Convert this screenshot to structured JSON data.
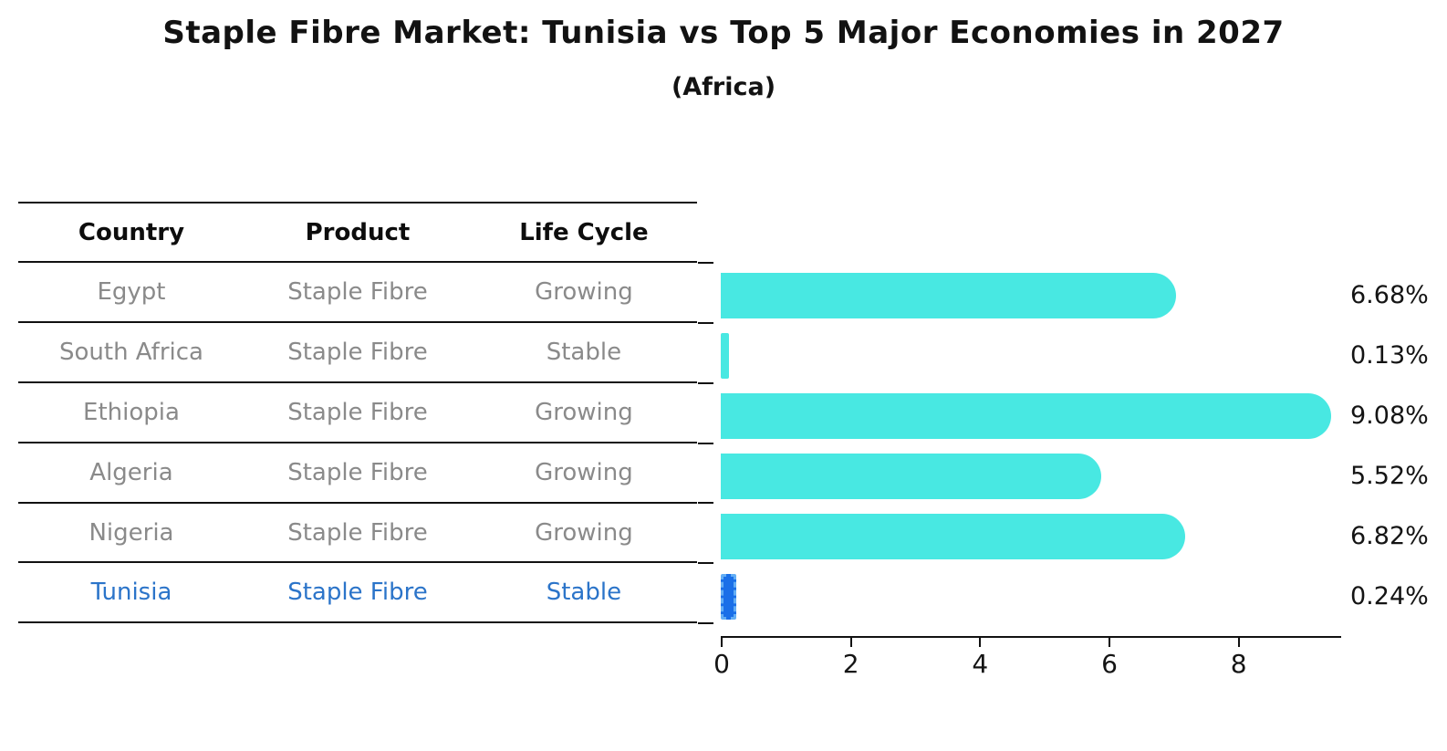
{
  "title": "Staple Fibre Market: Tunisia vs Top 5 Major Economies in 2027",
  "subtitle": "(Africa)",
  "table": {
    "columns": [
      "Country",
      "Product",
      "Life Cycle"
    ],
    "rows": [
      {
        "country": "Egypt",
        "product": "Staple Fibre",
        "life_cycle": "Growing",
        "highlight": false
      },
      {
        "country": "South Africa",
        "product": "Staple Fibre",
        "life_cycle": "Stable",
        "highlight": false
      },
      {
        "country": "Ethiopia",
        "product": "Staple Fibre",
        "life_cycle": "Growing",
        "highlight": false
      },
      {
        "country": "Algeria",
        "product": "Staple Fibre",
        "life_cycle": "Growing",
        "highlight": false
      },
      {
        "country": "Nigeria",
        "product": "Staple Fibre",
        "life_cycle": "Growing",
        "highlight": false
      },
      {
        "country": "Tunisia",
        "product": "Staple Fibre",
        "life_cycle": "Stable",
        "highlight": true
      }
    ]
  },
  "chart_data": {
    "type": "bar",
    "orientation": "horizontal",
    "title": "Staple Fibre Market: Tunisia vs Top 5 Major Economies in 2027",
    "subtitle": "(Africa)",
    "categories": [
      "Egypt",
      "South Africa",
      "Ethiopia",
      "Algeria",
      "Nigeria",
      "Tunisia"
    ],
    "values": [
      6.68,
      0.13,
      9.08,
      5.52,
      6.82,
      0.24
    ],
    "labels": [
      "6.68%",
      "0.13%",
      "9.08%",
      "5.52%",
      "6.82%",
      "0.24%"
    ],
    "x_ticks": [
      "0",
      "2",
      "4",
      "6",
      "8"
    ],
    "xlim": [
      0,
      9.6
    ],
    "grid": false,
    "legend": false,
    "bar_color": "#48E8E2",
    "highlight_index": 5,
    "highlight_color": "#1A6FE8",
    "highlight_border_color": "#63AEF5",
    "highlight_text_color": "#2B74C9"
  }
}
